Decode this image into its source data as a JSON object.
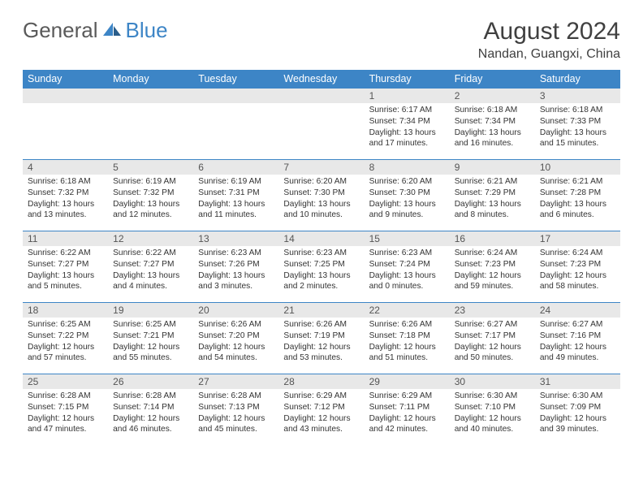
{
  "logo": {
    "text1": "General",
    "text2": "Blue"
  },
  "title": "August 2024",
  "location": "Nandan, Guangxi, China",
  "colors": {
    "header_bg": "#3d85c6",
    "header_text": "#ffffff",
    "daynum_bg": "#e8e8e8",
    "border": "#3d85c6",
    "body_text": "#333333"
  },
  "weekdays": [
    "Sunday",
    "Monday",
    "Tuesday",
    "Wednesday",
    "Thursday",
    "Friday",
    "Saturday"
  ],
  "weeks": [
    [
      null,
      null,
      null,
      null,
      {
        "n": "1",
        "sr": "6:17 AM",
        "ss": "7:34 PM",
        "dl": "13 hours and 17 minutes."
      },
      {
        "n": "2",
        "sr": "6:18 AM",
        "ss": "7:34 PM",
        "dl": "13 hours and 16 minutes."
      },
      {
        "n": "3",
        "sr": "6:18 AM",
        "ss": "7:33 PM",
        "dl": "13 hours and 15 minutes."
      }
    ],
    [
      {
        "n": "4",
        "sr": "6:18 AM",
        "ss": "7:32 PM",
        "dl": "13 hours and 13 minutes."
      },
      {
        "n": "5",
        "sr": "6:19 AM",
        "ss": "7:32 PM",
        "dl": "13 hours and 12 minutes."
      },
      {
        "n": "6",
        "sr": "6:19 AM",
        "ss": "7:31 PM",
        "dl": "13 hours and 11 minutes."
      },
      {
        "n": "7",
        "sr": "6:20 AM",
        "ss": "7:30 PM",
        "dl": "13 hours and 10 minutes."
      },
      {
        "n": "8",
        "sr": "6:20 AM",
        "ss": "7:30 PM",
        "dl": "13 hours and 9 minutes."
      },
      {
        "n": "9",
        "sr": "6:21 AM",
        "ss": "7:29 PM",
        "dl": "13 hours and 8 minutes."
      },
      {
        "n": "10",
        "sr": "6:21 AM",
        "ss": "7:28 PM",
        "dl": "13 hours and 6 minutes."
      }
    ],
    [
      {
        "n": "11",
        "sr": "6:22 AM",
        "ss": "7:27 PM",
        "dl": "13 hours and 5 minutes."
      },
      {
        "n": "12",
        "sr": "6:22 AM",
        "ss": "7:27 PM",
        "dl": "13 hours and 4 minutes."
      },
      {
        "n": "13",
        "sr": "6:23 AM",
        "ss": "7:26 PM",
        "dl": "13 hours and 3 minutes."
      },
      {
        "n": "14",
        "sr": "6:23 AM",
        "ss": "7:25 PM",
        "dl": "13 hours and 2 minutes."
      },
      {
        "n": "15",
        "sr": "6:23 AM",
        "ss": "7:24 PM",
        "dl": "13 hours and 0 minutes."
      },
      {
        "n": "16",
        "sr": "6:24 AM",
        "ss": "7:23 PM",
        "dl": "12 hours and 59 minutes."
      },
      {
        "n": "17",
        "sr": "6:24 AM",
        "ss": "7:23 PM",
        "dl": "12 hours and 58 minutes."
      }
    ],
    [
      {
        "n": "18",
        "sr": "6:25 AM",
        "ss": "7:22 PM",
        "dl": "12 hours and 57 minutes."
      },
      {
        "n": "19",
        "sr": "6:25 AM",
        "ss": "7:21 PM",
        "dl": "12 hours and 55 minutes."
      },
      {
        "n": "20",
        "sr": "6:26 AM",
        "ss": "7:20 PM",
        "dl": "12 hours and 54 minutes."
      },
      {
        "n": "21",
        "sr": "6:26 AM",
        "ss": "7:19 PM",
        "dl": "12 hours and 53 minutes."
      },
      {
        "n": "22",
        "sr": "6:26 AM",
        "ss": "7:18 PM",
        "dl": "12 hours and 51 minutes."
      },
      {
        "n": "23",
        "sr": "6:27 AM",
        "ss": "7:17 PM",
        "dl": "12 hours and 50 minutes."
      },
      {
        "n": "24",
        "sr": "6:27 AM",
        "ss": "7:16 PM",
        "dl": "12 hours and 49 minutes."
      }
    ],
    [
      {
        "n": "25",
        "sr": "6:28 AM",
        "ss": "7:15 PM",
        "dl": "12 hours and 47 minutes."
      },
      {
        "n": "26",
        "sr": "6:28 AM",
        "ss": "7:14 PM",
        "dl": "12 hours and 46 minutes."
      },
      {
        "n": "27",
        "sr": "6:28 AM",
        "ss": "7:13 PM",
        "dl": "12 hours and 45 minutes."
      },
      {
        "n": "28",
        "sr": "6:29 AM",
        "ss": "7:12 PM",
        "dl": "12 hours and 43 minutes."
      },
      {
        "n": "29",
        "sr": "6:29 AM",
        "ss": "7:11 PM",
        "dl": "12 hours and 42 minutes."
      },
      {
        "n": "30",
        "sr": "6:30 AM",
        "ss": "7:10 PM",
        "dl": "12 hours and 40 minutes."
      },
      {
        "n": "31",
        "sr": "6:30 AM",
        "ss": "7:09 PM",
        "dl": "12 hours and 39 minutes."
      }
    ]
  ],
  "labels": {
    "sunrise": "Sunrise:",
    "sunset": "Sunset:",
    "daylight": "Daylight:"
  }
}
